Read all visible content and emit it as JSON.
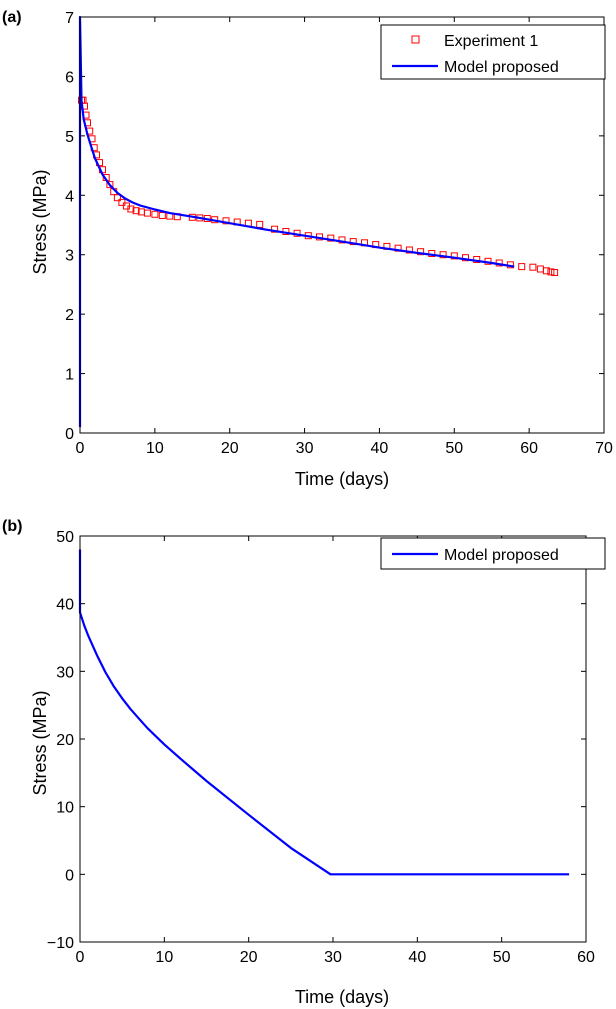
{
  "chart_data": [
    {
      "type": "line",
      "panel_label": "(a)",
      "title": "",
      "xlabel": "Time (days)",
      "ylabel": "Stress (MPa)",
      "xlim": [
        0,
        70
      ],
      "ylim": [
        0,
        7
      ],
      "x_ticks": [
        0,
        10,
        20,
        30,
        40,
        50,
        60,
        70
      ],
      "y_ticks": [
        0,
        1,
        2,
        3,
        4,
        5,
        6,
        7
      ],
      "grid": false,
      "legend_position": "top-right",
      "colors": {
        "experiment": "#ff0000",
        "model": "#0000ff"
      },
      "series": [
        {
          "name": "Experiment 1",
          "style": "open-square-markers",
          "x": [
            0.2,
            0.4,
            0.6,
            0.8,
            1.0,
            1.3,
            1.6,
            1.9,
            2.2,
            2.6,
            3.0,
            3.5,
            4.0,
            4.5,
            5.0,
            5.6,
            6.2,
            6.8,
            7.5,
            8.2,
            9.0,
            10.0,
            11.0,
            12.0,
            13.0,
            15.0,
            16.0,
            17.0,
            18.0,
            19.5,
            21.0,
            22.5,
            24.0,
            26.0,
            27.5,
            29.0,
            30.5,
            32.0,
            33.5,
            35.0,
            36.5,
            38.0,
            39.5,
            41.0,
            42.5,
            44.0,
            45.5,
            47.0,
            48.5,
            50.0,
            51.5,
            53.0,
            54.5,
            56.0,
            57.5,
            59.0,
            60.5,
            61.5,
            62.3,
            62.9,
            63.4
          ],
          "y": [
            5.6,
            5.6,
            5.5,
            5.35,
            5.22,
            5.08,
            4.95,
            4.8,
            4.68,
            4.55,
            4.43,
            4.3,
            4.18,
            4.06,
            3.96,
            3.88,
            3.82,
            3.77,
            3.74,
            3.72,
            3.7,
            3.68,
            3.66,
            3.65,
            3.64,
            3.63,
            3.62,
            3.61,
            3.59,
            3.57,
            3.55,
            3.53,
            3.51,
            3.43,
            3.39,
            3.36,
            3.32,
            3.3,
            3.28,
            3.25,
            3.22,
            3.2,
            3.17,
            3.14,
            3.11,
            3.08,
            3.05,
            3.02,
            3.0,
            2.98,
            2.95,
            2.92,
            2.89,
            2.86,
            2.83,
            2.8,
            2.79,
            2.76,
            2.73,
            2.71,
            2.7
          ]
        },
        {
          "name": "Model proposed",
          "style": "line",
          "x": [
            0,
            0,
            0.2,
            0.5,
            1,
            1.5,
            2,
            3,
            4,
            5,
            6,
            7,
            8,
            10,
            12,
            15,
            20,
            25,
            30,
            35,
            40,
            45,
            50,
            55,
            58
          ],
          "y": [
            0.1,
            7,
            5.6,
            5.28,
            5.02,
            4.82,
            4.62,
            4.35,
            4.17,
            4.04,
            3.95,
            3.88,
            3.83,
            3.76,
            3.7,
            3.64,
            3.53,
            3.42,
            3.32,
            3.22,
            3.12,
            3.03,
            2.95,
            2.86,
            2.8
          ]
        }
      ]
    },
    {
      "type": "line",
      "panel_label": "(b)",
      "title": "",
      "xlabel": "Time (days)",
      "ylabel": "Stress (MPa)",
      "xlim": [
        0,
        60
      ],
      "ylim": [
        -10,
        50
      ],
      "x_ticks": [
        0,
        10,
        20,
        30,
        40,
        50,
        60
      ],
      "y_ticks": [
        -10,
        0,
        10,
        20,
        30,
        40,
        50
      ],
      "grid": false,
      "legend_position": "top-right",
      "colors": {
        "model": "#0000ff"
      },
      "series": [
        {
          "name": "Model proposed",
          "style": "line",
          "x": [
            0,
            0,
            0.5,
            1,
            2,
            3,
            4,
            5,
            6,
            7,
            8,
            10,
            12,
            15,
            20,
            25,
            29.7,
            30,
            40,
            50,
            58
          ],
          "y": [
            48,
            38.7,
            36.8,
            35.2,
            32.4,
            29.9,
            27.8,
            26.0,
            24.4,
            23.0,
            21.6,
            19.2,
            17.0,
            13.8,
            8.8,
            3.9,
            0,
            0,
            0,
            0,
            0
          ]
        }
      ]
    }
  ]
}
